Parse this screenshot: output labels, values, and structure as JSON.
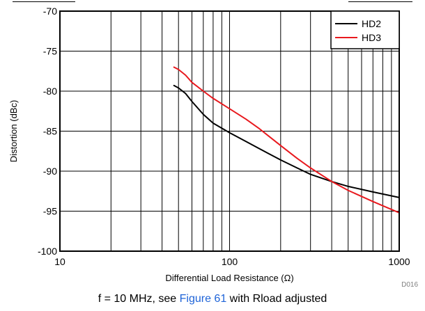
{
  "chart_data": {
    "type": "line",
    "xscale": "log",
    "xlim": [
      10,
      1000
    ],
    "ylim": [
      -100,
      -70
    ],
    "xticks": [
      10,
      100,
      1000
    ],
    "xtick_labels": [
      "10",
      "100",
      "1000"
    ],
    "yticks": [
      -100,
      -95,
      -90,
      -85,
      -80,
      -75,
      -70
    ],
    "ytick_labels": [
      "-100",
      "-95",
      "-90",
      "-85",
      "-80",
      "-75",
      "-70"
    ],
    "xlabel": "Differential Load Resistance (Ω)",
    "ylabel": "Distortion (dBc)",
    "grid": true,
    "legend_position": "top-right",
    "series": [
      {
        "name": "HD2",
        "color": "#000000",
        "x": [
          47,
          50,
          55,
          60,
          70,
          80,
          100,
          125,
          150,
          200,
          250,
          300,
          400,
          500,
          700,
          1000
        ],
        "y": [
          -79.3,
          -79.6,
          -80.3,
          -81.3,
          -82.9,
          -84.0,
          -85.2,
          -86.3,
          -87.2,
          -88.6,
          -89.6,
          -90.4,
          -91.3,
          -91.9,
          -92.6,
          -93.3
        ]
      },
      {
        "name": "HD3",
        "color": "#e8191e",
        "x": [
          47,
          50,
          55,
          60,
          70,
          80,
          100,
          125,
          150,
          200,
          250,
          300,
          400,
          500,
          700,
          1000
        ],
        "y": [
          -77.0,
          -77.3,
          -78.0,
          -78.9,
          -80.0,
          -80.9,
          -82.2,
          -83.5,
          -84.7,
          -86.8,
          -88.4,
          -89.6,
          -91.3,
          -92.4,
          -93.8,
          -95.2
        ]
      }
    ]
  },
  "doc_id": "D016",
  "caption": {
    "prefix": "f = 10 MHz, see ",
    "link": "Figure 61",
    "suffix": " with Rload adjusted"
  }
}
